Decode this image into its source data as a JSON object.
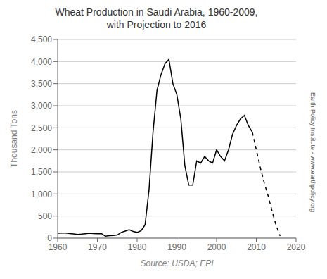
{
  "chart_data": {
    "type": "line",
    "title": "Wheat Production in Saudi Arabia, 1960-2009,\nwith Projection to 2016",
    "x_label": "Source: USDA; EPI",
    "y_label": "Thousand Tons",
    "annotations": [
      "Earth Policy Institute - www.earthpolicy.org"
    ],
    "x": [
      1960,
      1961,
      1962,
      1963,
      1964,
      1965,
      1966,
      1967,
      1968,
      1969,
      1970,
      1971,
      1972,
      1973,
      1974,
      1975,
      1976,
      1977,
      1978,
      1979,
      1980,
      1981,
      1982,
      1983,
      1984,
      1985,
      1986,
      1987,
      1988,
      1989,
      1990,
      1991,
      1992,
      1993,
      1994,
      1995,
      1996,
      1997,
      1998,
      1999,
      2000,
      2001,
      2002,
      2003,
      2004,
      2005,
      2006,
      2007,
      2008,
      2009,
      2010,
      2011,
      2012,
      2013,
      2014,
      2015,
      2016
    ],
    "series": [
      {
        "color": "#000000",
        "line_style": "solid",
        "values": [
          110,
          115,
          115,
          105,
          95,
          85,
          90,
          100,
          110,
          105,
          100,
          105,
          45,
          55,
          60,
          70,
          130,
          160,
          190,
          150,
          130,
          170,
          300,
          1100,
          2400,
          3350,
          3700,
          3950,
          4050,
          3500,
          3250,
          2700,
          1650,
          1200,
          1200,
          1750,
          1700,
          1850,
          1750,
          1700,
          2000,
          1850,
          1750,
          2000,
          2350,
          2550,
          2700,
          2780,
          2550,
          2400,
          null,
          null,
          null,
          null,
          null,
          null,
          null
        ]
      },
      {
        "color": "#000000",
        "line_style": "dashed",
        "values": [
          null,
          null,
          null,
          null,
          null,
          null,
          null,
          null,
          null,
          null,
          null,
          null,
          null,
          null,
          null,
          null,
          null,
          null,
          null,
          null,
          null,
          null,
          null,
          null,
          null,
          null,
          null,
          null,
          null,
          null,
          null,
          null,
          null,
          null,
          null,
          null,
          null,
          null,
          null,
          null,
          null,
          null,
          null,
          null,
          null,
          null,
          null,
          null,
          null,
          2400,
          2000,
          1600,
          1250,
          950,
          600,
          280,
          50
        ]
      }
    ],
    "xlim": [
      1960,
      2020
    ],
    "xticks": [
      1960,
      1970,
      1980,
      1990,
      2000,
      2010,
      2020
    ],
    "ylim": [
      0,
      4500
    ],
    "yticks": [
      0,
      500,
      {
        "value": 1000,
        "label": "1,000"
      },
      {
        "value": 1500,
        "label": "1,500"
      },
      {
        "value": 2000,
        "label": "2,000"
      },
      {
        "value": 2500,
        "label": "2,500"
      },
      {
        "value": 3000,
        "label": "3,000"
      },
      {
        "value": 3500,
        "label": "3,500"
      },
      {
        "value": 4000,
        "label": "4,000"
      },
      {
        "value": 4500,
        "label": "4,500"
      }
    ],
    "grid": "y"
  }
}
